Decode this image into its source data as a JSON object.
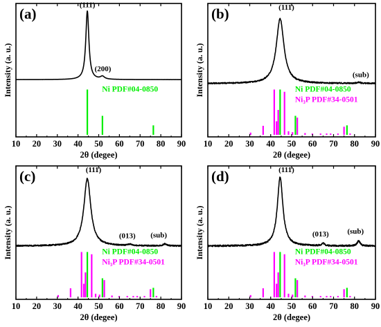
{
  "colors": {
    "xrd": "#000000",
    "ni": "#00ee00",
    "ni3p": "#ff00ff"
  },
  "chart_data": [
    {
      "type": "line",
      "panel_label": "(a)",
      "xlabel": "2θ (degee)",
      "ylabel": "Intensity (a. u.)",
      "xlim": [
        10,
        90
      ],
      "xticks": [
        10,
        20,
        30,
        40,
        50,
        60,
        70,
        80,
        90
      ],
      "curve": {
        "base": 0.3,
        "noise": 0.002,
        "peaks": [
          {
            "x": 44.5,
            "h": 5.3,
            "w": 0.9
          },
          {
            "x": 51.8,
            "h": 0.22,
            "w": 1.2
          }
        ]
      },
      "annotations": [
        {
          "text": "(111)",
          "x": 44.5,
          "y": 5.9
        },
        {
          "text": "(200)",
          "x": 52.0,
          "y": 0.95
        }
      ],
      "stick_refs": [
        {
          "name": "Ni PDF#04-0850",
          "color": "#00ee00",
          "sticks": [
            {
              "x": 44.5,
              "i": 100
            },
            {
              "x": 51.8,
              "i": 42
            },
            {
              "x": 76.4,
              "i": 21
            }
          ]
        }
      ]
    },
    {
      "type": "line",
      "panel_label": "(b)",
      "xlabel": "2θ (degee)",
      "ylabel": "Intensity (a. u.)",
      "xlim": [
        10,
        90
      ],
      "xticks": [
        10,
        20,
        30,
        40,
        50,
        60,
        70,
        80,
        90
      ],
      "curve": {
        "base": 0.0,
        "noise": 0.05,
        "peaks": [
          {
            "x": 44.5,
            "h": 5.0,
            "w": 2.2
          },
          {
            "x": 82.0,
            "h": 0.08,
            "w": 1.0
          }
        ]
      },
      "annotations": [
        {
          "text": "(111)",
          "x": 47.5,
          "y": 5.7
        },
        {
          "text": "(sub)",
          "x": 83.0,
          "y": 0.5
        }
      ],
      "stick_refs": [
        {
          "name": "Ni PDF#04-0850",
          "color": "#00ee00",
          "sticks": [
            {
              "x": 44.5,
              "i": 100
            },
            {
              "x": 51.8,
              "i": 42
            },
            {
              "x": 76.4,
              "i": 21
            }
          ]
        },
        {
          "name": "Ni₃P PDF#34-0501",
          "color": "#ff00ff",
          "sticks": [
            {
              "x": 30.4,
              "i": 5
            },
            {
              "x": 36.4,
              "i": 20
            },
            {
              "x": 41.7,
              "i": 100
            },
            {
              "x": 42.8,
              "i": 30
            },
            {
              "x": 43.6,
              "i": 55
            },
            {
              "x": 46.6,
              "i": 95
            },
            {
              "x": 48.5,
              "i": 8
            },
            {
              "x": 50.4,
              "i": 6
            },
            {
              "x": 52.7,
              "i": 38
            },
            {
              "x": 56.4,
              "i": 4
            },
            {
              "x": 59.9,
              "i": 3
            },
            {
              "x": 63.8,
              "i": 3
            },
            {
              "x": 66.7,
              "i": 3
            },
            {
              "x": 68.6,
              "i": 3
            },
            {
              "x": 72.1,
              "i": 3
            },
            {
              "x": 75.0,
              "i": 18
            },
            {
              "x": 77.9,
              "i": 3
            }
          ]
        }
      ]
    },
    {
      "type": "line",
      "panel_label": "(c)",
      "xlabel": "2θ (degee)",
      "ylabel": "Intensity (a. u.)",
      "xlim": [
        10,
        90
      ],
      "xticks": [
        10,
        20,
        30,
        40,
        50,
        60,
        70,
        80,
        90
      ],
      "curve": {
        "base": 0.0,
        "noise": 0.05,
        "peaks": [
          {
            "x": 44.5,
            "h": 5.2,
            "w": 2.0
          },
          {
            "x": 65.0,
            "h": 0.1,
            "w": 1.2
          },
          {
            "x": 82.0,
            "h": 0.15,
            "w": 1.0
          }
        ]
      },
      "annotations": [
        {
          "text": "(111)",
          "x": 47.5,
          "y": 5.7
        },
        {
          "text": "(013)",
          "x": 63.8,
          "y": 0.6
        },
        {
          "text": "(sub)",
          "x": 79.0,
          "y": 0.65
        }
      ],
      "stick_refs": [
        {
          "name": "Ni PDF#04-0850",
          "color": "#00ee00",
          "sticks": [
            {
              "x": 44.5,
              "i": 100
            },
            {
              "x": 51.8,
              "i": 42
            },
            {
              "x": 76.4,
              "i": 21
            }
          ]
        },
        {
          "name": "Ni₃P PDF#34-0501",
          "color": "#ff00ff",
          "sticks": [
            {
              "x": 30.4,
              "i": 5
            },
            {
              "x": 36.4,
              "i": 20
            },
            {
              "x": 41.7,
              "i": 100
            },
            {
              "x": 42.8,
              "i": 30
            },
            {
              "x": 43.6,
              "i": 55
            },
            {
              "x": 46.6,
              "i": 95
            },
            {
              "x": 48.5,
              "i": 8
            },
            {
              "x": 50.4,
              "i": 6
            },
            {
              "x": 52.7,
              "i": 38
            },
            {
              "x": 56.4,
              "i": 4
            },
            {
              "x": 59.9,
              "i": 3
            },
            {
              "x": 63.8,
              "i": 3
            },
            {
              "x": 66.7,
              "i": 3
            },
            {
              "x": 68.6,
              "i": 3
            },
            {
              "x": 72.1,
              "i": 3
            },
            {
              "x": 75.0,
              "i": 18
            },
            {
              "x": 77.9,
              "i": 3
            }
          ]
        }
      ]
    },
    {
      "type": "line",
      "panel_label": "(d)",
      "xlabel": "2θ (degee)",
      "ylabel": "Intensity (a. u.)",
      "xlim": [
        10,
        90
      ],
      "xticks": [
        10,
        20,
        30,
        40,
        50,
        60,
        70,
        80,
        90
      ],
      "curve": {
        "base": 0.0,
        "noise": 0.06,
        "peaks": [
          {
            "x": 44.5,
            "h": 5.3,
            "w": 1.6
          },
          {
            "x": 65.0,
            "h": 0.2,
            "w": 0.8
          },
          {
            "x": 82.0,
            "h": 0.4,
            "w": 0.8
          }
        ]
      },
      "annotations": [
        {
          "text": "(111)",
          "x": 47.5,
          "y": 5.7
        },
        {
          "text": "(013)",
          "x": 63.8,
          "y": 0.75
        },
        {
          "text": "(sub)",
          "x": 80.5,
          "y": 0.95
        }
      ],
      "stick_refs": [
        {
          "name": "Ni PDF#04-0850",
          "color": "#00ee00",
          "sticks": [
            {
              "x": 44.5,
              "i": 100
            },
            {
              "x": 51.8,
              "i": 42
            },
            {
              "x": 76.4,
              "i": 21
            }
          ]
        },
        {
          "name": "Ni₃P PDF#34-0501",
          "color": "#ff00ff",
          "sticks": [
            {
              "x": 30.4,
              "i": 5
            },
            {
              "x": 36.4,
              "i": 20
            },
            {
              "x": 41.7,
              "i": 100
            },
            {
              "x": 42.8,
              "i": 30
            },
            {
              "x": 43.6,
              "i": 55
            },
            {
              "x": 46.6,
              "i": 95
            },
            {
              "x": 48.5,
              "i": 8
            },
            {
              "x": 50.4,
              "i": 6
            },
            {
              "x": 52.7,
              "i": 38
            },
            {
              "x": 56.4,
              "i": 4
            },
            {
              "x": 59.9,
              "i": 3
            },
            {
              "x": 63.8,
              "i": 3
            },
            {
              "x": 66.7,
              "i": 3
            },
            {
              "x": 68.6,
              "i": 3
            },
            {
              "x": 72.1,
              "i": 3
            },
            {
              "x": 75.0,
              "i": 18
            },
            {
              "x": 77.9,
              "i": 3
            }
          ]
        }
      ]
    }
  ]
}
